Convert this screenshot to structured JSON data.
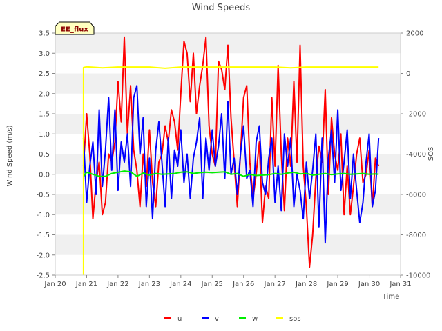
{
  "chart_data": {
    "type": "line",
    "title": "Wind Speeds",
    "xlabel": "Time",
    "ylabel": "Wind Speed (m/s)",
    "y2label": "SOS",
    "site_label": "EE_flux",
    "xlim": [
      20,
      31
    ],
    "ylim": [
      -2.5,
      3.5
    ],
    "y2lim": [
      -10000,
      2000
    ],
    "x_ticks": [
      20,
      21,
      22,
      23,
      24,
      25,
      26,
      27,
      28,
      29,
      30,
      31
    ],
    "x_tick_labels": [
      "Jan 20",
      "Jan 21",
      "Jan 22",
      "Jan 23",
      "Jan 24",
      "Jan 25",
      "Jan 26",
      "Jan 27",
      "Jan 28",
      "Jan 29",
      "Jan 30",
      "Jan 31"
    ],
    "y_ticks": [
      -2.5,
      -2.0,
      -1.5,
      -1.0,
      -0.5,
      0.0,
      0.5,
      1.0,
      1.5,
      2.0,
      2.5,
      3.0,
      3.5
    ],
    "y_tick_labels": [
      "-2.5",
      "-2.0",
      "-1.5",
      "-1.0",
      "-0.5",
      "0.0",
      "0.5",
      "1.0",
      "1.5",
      "2.0",
      "2.5",
      "3.0",
      "3.5"
    ],
    "y2_ticks": [
      -10000,
      -8000,
      -6000,
      -4000,
      -2000,
      0,
      2000
    ],
    "y2_tick_labels": [
      "-10000",
      "-8000",
      "-6000",
      "-4000",
      "-2000",
      "0",
      "2000"
    ],
    "series": [
      {
        "name": "u",
        "color": "#ff0000",
        "axis": "left",
        "x": [
          20.9,
          21.0,
          21.1,
          21.2,
          21.3,
          21.4,
          21.5,
          21.6,
          21.7,
          21.8,
          21.9,
          22.0,
          22.1,
          22.2,
          22.3,
          22.4,
          22.5,
          22.6,
          22.7,
          22.8,
          22.9,
          23.0,
          23.1,
          23.2,
          23.3,
          23.4,
          23.5,
          23.6,
          23.7,
          23.8,
          23.9,
          24.0,
          24.1,
          24.2,
          24.3,
          24.4,
          24.5,
          24.6,
          24.7,
          24.8,
          24.9,
          25.0,
          25.1,
          25.2,
          25.3,
          25.4,
          25.5,
          25.6,
          25.7,
          25.8,
          25.9,
          26.0,
          26.1,
          26.2,
          26.3,
          26.4,
          26.5,
          26.6,
          26.7,
          26.8,
          26.9,
          27.0,
          27.1,
          27.2,
          27.3,
          27.4,
          27.5,
          27.6,
          27.7,
          27.8,
          27.9,
          28.0,
          28.1,
          28.2,
          28.3,
          28.4,
          28.5,
          28.6,
          28.7,
          28.8,
          28.9,
          29.0,
          29.1,
          29.2,
          29.3,
          29.4,
          29.5,
          29.6,
          29.7,
          29.8,
          29.9,
          30.0,
          30.1,
          30.2,
          30.3
        ],
        "values": [
          0.2,
          1.5,
          0.5,
          -1.1,
          -0.2,
          0.3,
          -1.0,
          -0.7,
          0.5,
          0.3,
          0.8,
          2.3,
          1.3,
          3.4,
          1.0,
          2.2,
          0.6,
          0.1,
          -0.8,
          0.5,
          -0.3,
          1.1,
          -0.2,
          -0.8,
          0.3,
          0.5,
          1.2,
          0.8,
          1.6,
          1.3,
          0.6,
          2.0,
          3.3,
          3.0,
          1.8,
          3.0,
          1.5,
          2.2,
          2.7,
          3.4,
          1.2,
          0.5,
          0.2,
          2.8,
          2.6,
          2.1,
          3.2,
          1.4,
          0.3,
          -0.8,
          0.5,
          1.9,
          2.2,
          0.3,
          -0.6,
          0.0,
          0.8,
          -1.2,
          -0.3,
          -0.6,
          1.9,
          0.2,
          2.7,
          0.5,
          -0.9,
          0.9,
          0.2,
          2.3,
          0.3,
          3.2,
          0.2,
          -0.8,
          -2.3,
          -1.5,
          -0.1,
          0.7,
          0.3,
          2.1,
          -0.5,
          1.4,
          0.5,
          0.1,
          1.0,
          -1.0,
          0.2,
          -1.0,
          -0.3,
          0.5,
          0.9,
          -0.2,
          0.0,
          0.6,
          -0.8,
          0.4,
          0.2
        ]
      },
      {
        "name": "v",
        "color": "#0000ff",
        "axis": "left",
        "x": [
          20.9,
          21.0,
          21.1,
          21.2,
          21.3,
          21.4,
          21.5,
          21.6,
          21.7,
          21.8,
          21.9,
          22.0,
          22.1,
          22.2,
          22.3,
          22.4,
          22.5,
          22.6,
          22.7,
          22.8,
          22.9,
          23.0,
          23.1,
          23.2,
          23.3,
          23.4,
          23.5,
          23.6,
          23.7,
          23.8,
          23.9,
          24.0,
          24.1,
          24.2,
          24.3,
          24.4,
          24.5,
          24.6,
          24.7,
          24.8,
          24.9,
          25.0,
          25.1,
          25.2,
          25.3,
          25.4,
          25.5,
          25.6,
          25.7,
          25.8,
          25.9,
          26.0,
          26.1,
          26.2,
          26.3,
          26.4,
          26.5,
          26.6,
          26.7,
          26.8,
          26.9,
          27.0,
          27.1,
          27.2,
          27.3,
          27.4,
          27.5,
          27.6,
          27.7,
          27.8,
          27.9,
          28.0,
          28.1,
          28.2,
          28.3,
          28.4,
          28.5,
          28.6,
          28.7,
          28.8,
          28.9,
          29.0,
          29.1,
          29.2,
          29.3,
          29.4,
          29.5,
          29.6,
          29.7,
          29.8,
          29.9,
          30.0,
          30.1,
          30.2,
          30.3
        ],
        "values": [
          0.9,
          -0.7,
          0.2,
          0.8,
          -0.5,
          1.6,
          -0.3,
          0.6,
          1.9,
          0.1,
          1.6,
          -0.4,
          0.8,
          0.3,
          1.0,
          -0.3,
          1.9,
          2.2,
          0.5,
          1.4,
          -0.8,
          0.4,
          -1.1,
          0.6,
          1.3,
          0.3,
          -0.8,
          0.9,
          -0.6,
          0.6,
          0.2,
          1.1,
          -0.2,
          0.5,
          -0.6,
          0.4,
          0.8,
          1.4,
          -0.6,
          0.9,
          0.1,
          1.1,
          0.2,
          0.7,
          1.5,
          -0.1,
          1.8,
          0.0,
          0.4,
          -0.5,
          0.5,
          1.2,
          -0.1,
          0.1,
          -0.8,
          0.8,
          1.2,
          -0.2,
          -0.5,
          0.4,
          0.9,
          -0.7,
          0.2,
          -0.9,
          1.0,
          0.2,
          0.9,
          -0.8,
          0.0,
          -0.4,
          -1.1,
          0.3,
          -0.6,
          0.1,
          1.0,
          -1.3,
          0.9,
          -1.7,
          0.4,
          1.1,
          -0.2,
          1.6,
          -0.4,
          0.3,
          1.1,
          -0.6,
          0.5,
          -0.4,
          -1.2,
          -0.7,
          0.3,
          1.0,
          -0.8,
          -0.4,
          0.9
        ]
      },
      {
        "name": "w",
        "color": "#00ee00",
        "axis": "left",
        "x": [
          20.9,
          21.0,
          21.2,
          21.4,
          21.6,
          21.8,
          22.0,
          22.2,
          22.4,
          22.6,
          22.8,
          23.0,
          23.2,
          23.4,
          23.6,
          23.8,
          24.0,
          24.2,
          24.4,
          24.6,
          24.8,
          25.0,
          25.2,
          25.4,
          25.6,
          25.8,
          26.0,
          26.2,
          26.4,
          26.6,
          26.8,
          27.0,
          27.2,
          27.4,
          27.6,
          27.8,
          28.0,
          28.2,
          28.4,
          28.6,
          28.8,
          29.0,
          29.2,
          29.4,
          29.6,
          29.8,
          30.0,
          30.2,
          30.3
        ],
        "values": [
          -0.05,
          0.05,
          0.0,
          -0.05,
          -0.05,
          0.02,
          0.05,
          0.08,
          0.06,
          -0.05,
          0.03,
          -0.02,
          0.02,
          0.0,
          0.01,
          0.02,
          0.05,
          0.06,
          0.02,
          0.04,
          0.05,
          0.04,
          0.05,
          0.06,
          0.0,
          0.02,
          -0.05,
          0.0,
          -0.03,
          -0.02,
          -0.01,
          0.02,
          0.0,
          0.03,
          0.05,
          0.01,
          0.02,
          -0.02,
          0.0,
          0.02,
          -0.01,
          0.01,
          0.02,
          0.0,
          0.01,
          0.02,
          0.0,
          0.01,
          0.0
        ]
      },
      {
        "name": "sos",
        "color": "#ffff00",
        "axis": "right",
        "x": [
          20.9,
          20.9,
          21.0,
          21.5,
          22.0,
          23.0,
          23.5,
          24.0,
          25.0,
          26.0,
          27.0,
          27.5,
          28.0,
          29.0,
          30.0,
          30.3
        ],
        "values": [
          -10000,
          300,
          330,
          280,
          320,
          320,
          260,
          320,
          320,
          320,
          320,
          280,
          320,
          320,
          320,
          320
        ]
      }
    ],
    "legend": [
      "u",
      "v",
      "w",
      "sos"
    ],
    "legend_position": "bottom-center",
    "grid": true
  }
}
